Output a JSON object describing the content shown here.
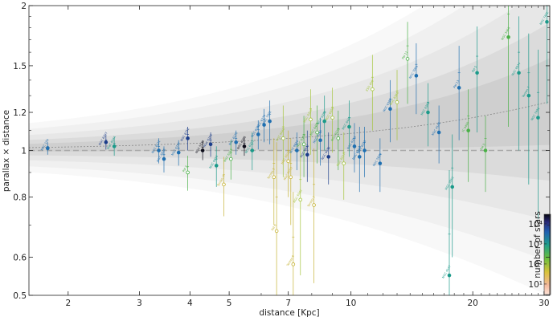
{
  "chart_data": {
    "type": "scatter",
    "xlabel": "distance [Kpc]",
    "ylabel": "parallax × distance",
    "x_scale": "log",
    "y_scale": "log",
    "xlim": [
      1.6,
      31
    ],
    "ylim": [
      0.5,
      2
    ],
    "xticks": [
      2,
      3,
      4,
      5,
      7,
      10,
      20,
      30
    ],
    "yticks": [
      0.5,
      0.6,
      0.8,
      1,
      1.2,
      1.5,
      2
    ],
    "reference_line": 1,
    "colorbar": {
      "label": "number of stars",
      "scale": "log",
      "range": [
        3,
        30000
      ],
      "ticks": [
        {
          "value": 10,
          "text": "10¹"
        },
        {
          "value": 100,
          "text": "10²"
        },
        {
          "value": 1000,
          "text": "10³"
        },
        {
          "value": 10000,
          "text": "10⁴"
        }
      ]
    },
    "colors": {
      "dark": "#0d0d1a",
      "navy": "#1b3c8a",
      "blue": "#1f6fb0",
      "teal": "#1b9a8a",
      "green": "#49b046",
      "yellowgreen": "#a3c43a",
      "olive": "#c4b232",
      "orange": "#e89a5a",
      "peach": "#f3c9b0",
      "reference": "#aaaaaa",
      "trend": "#888888"
    },
    "points": [
      {
        "x": 1.78,
        "y": 1.01,
        "e": 0.01,
        "c": "blue",
        "label": "NGC 104",
        "open": false
      },
      {
        "x": 2.48,
        "y": 1.04,
        "e": 0.012,
        "c": "navy",
        "label": "NGC 6397",
        "open": false
      },
      {
        "x": 2.6,
        "y": 1.02,
        "e": 0.015,
        "c": "teal",
        "label": "NGC 6544",
        "open": false
      },
      {
        "x": 3.35,
        "y": 1.0,
        "e": 0.02,
        "c": "blue",
        "label": "NGC 6121",
        "open": false
      },
      {
        "x": 3.45,
        "y": 0.96,
        "e": 0.02,
        "c": "blue",
        "label": "NGC 6838",
        "open": false
      },
      {
        "x": 3.75,
        "y": 0.99,
        "e": 0.02,
        "c": "blue",
        "label": "NGC 6752",
        "open": false
      },
      {
        "x": 3.95,
        "y": 0.9,
        "e": 0.025,
        "c": "green",
        "label": "Pal 2",
        "open": true
      },
      {
        "x": 3.95,
        "y": 1.06,
        "e": 0.02,
        "c": "navy",
        "label": "NGC 6752",
        "open": false
      },
      {
        "x": 4.3,
        "y": 1.0,
        "e": 0.015,
        "c": "dark",
        "label": "NGC 5139",
        "open": false
      },
      {
        "x": 4.5,
        "y": 1.03,
        "e": 0.02,
        "c": "navy",
        "label": "NGC 6254",
        "open": false
      },
      {
        "x": 4.65,
        "y": 0.93,
        "e": 0.03,
        "c": "teal",
        "label": "NGC 6656",
        "open": false
      },
      {
        "x": 4.85,
        "y": 0.85,
        "e": 0.04,
        "c": "olive",
        "label": "Terzan 9",
        "open": true
      },
      {
        "x": 5.05,
        "y": 0.96,
        "e": 0.03,
        "c": "green",
        "label": "NGC 6218",
        "open": true
      },
      {
        "x": 5.2,
        "y": 1.04,
        "e": 0.02,
        "c": "blue",
        "label": "NGC 6171",
        "open": false
      },
      {
        "x": 5.45,
        "y": 1.02,
        "e": 0.015,
        "c": "dark",
        "label": "NGC 6205",
        "open": false
      },
      {
        "x": 5.7,
        "y": 1.0,
        "e": 0.03,
        "c": "teal",
        "label": "NGC 6723",
        "open": false
      },
      {
        "x": 5.9,
        "y": 1.08,
        "e": 0.025,
        "c": "blue",
        "label": "NGC 6341",
        "open": false
      },
      {
        "x": 6.1,
        "y": 1.13,
        "e": 0.03,
        "c": "blue",
        "label": "NGC 6779",
        "open": false
      },
      {
        "x": 6.3,
        "y": 1.15,
        "e": 0.04,
        "c": "blue",
        "label": "NGC 7078",
        "open": false
      },
      {
        "x": 6.45,
        "y": 0.88,
        "e": 0.06,
        "c": "olive",
        "label": "Terzan 5",
        "open": true
      },
      {
        "x": 6.55,
        "y": 0.68,
        "e": 0.12,
        "c": "olive",
        "label": "Pal 6",
        "open": true
      },
      {
        "x": 6.8,
        "y": 1.06,
        "e": 0.06,
        "c": "yellowgreen",
        "label": "NGC 6440",
        "open": true
      },
      {
        "x": 7.0,
        "y": 0.95,
        "e": 0.05,
        "c": "olive",
        "label": "NGC 6528",
        "open": true
      },
      {
        "x": 7.1,
        "y": 0.88,
        "e": 0.06,
        "c": "olive",
        "label": "NGC 6553",
        "open": true
      },
      {
        "x": 7.2,
        "y": 0.58,
        "e": 0.08,
        "c": "olive",
        "label": "Terzan 6",
        "open": true
      },
      {
        "x": 7.35,
        "y": 1.0,
        "e": 0.03,
        "c": "blue",
        "label": "NGC 6624",
        "open": false
      },
      {
        "x": 7.5,
        "y": 0.79,
        "e": 0.08,
        "c": "yellowgreen",
        "label": "NGC 6342",
        "open": true
      },
      {
        "x": 7.65,
        "y": 1.03,
        "e": 0.05,
        "c": "green",
        "label": "NGC 6304",
        "open": true
      },
      {
        "x": 7.8,
        "y": 0.98,
        "e": 0.04,
        "c": "navy",
        "label": "NGC 6637",
        "open": false
      },
      {
        "x": 7.95,
        "y": 1.16,
        "e": 0.06,
        "c": "yellowgreen",
        "label": "NGC 6316",
        "open": true
      },
      {
        "x": 8.1,
        "y": 0.77,
        "e": 0.08,
        "c": "olive",
        "label": "Terzan 2",
        "open": true
      },
      {
        "x": 8.25,
        "y": 1.09,
        "e": 0.05,
        "c": "green",
        "label": "NGC 6401",
        "open": true
      },
      {
        "x": 8.4,
        "y": 1.05,
        "e": 0.04,
        "c": "blue",
        "label": "NGC 6266",
        "open": false
      },
      {
        "x": 8.6,
        "y": 1.15,
        "e": 0.05,
        "c": "teal",
        "label": "NGC 6388",
        "open": false
      },
      {
        "x": 8.8,
        "y": 0.97,
        "e": 0.04,
        "c": "navy",
        "label": "NGC 6652",
        "open": false
      },
      {
        "x": 9.0,
        "y": 1.17,
        "e": 0.06,
        "c": "yellowgreen",
        "label": "NGC 6355",
        "open": true
      },
      {
        "x": 9.3,
        "y": 1.06,
        "e": 0.05,
        "c": "green",
        "label": "NGC 6539",
        "open": true
      },
      {
        "x": 9.6,
        "y": 0.94,
        "e": 0.05,
        "c": "yellowgreen",
        "label": "NGC 6517",
        "open": true
      },
      {
        "x": 9.9,
        "y": 1.12,
        "e": 0.05,
        "c": "teal",
        "label": "NGC 6441",
        "open": false
      },
      {
        "x": 10.2,
        "y": 1.02,
        "e": 0.04,
        "c": "blue",
        "label": "NGC 6356",
        "open": false
      },
      {
        "x": 10.5,
        "y": 0.97,
        "e": 0.05,
        "c": "blue",
        "label": "NGC 6569",
        "open": false
      },
      {
        "x": 10.8,
        "y": 1.0,
        "e": 0.04,
        "c": "blue",
        "label": "NGC 6293",
        "open": false
      },
      {
        "x": 11.3,
        "y": 1.34,
        "e": 0.08,
        "c": "yellowgreen",
        "label": "ESO 456",
        "open": true
      },
      {
        "x": 11.8,
        "y": 0.94,
        "e": 0.04,
        "c": "blue",
        "label": "NGC 5824",
        "open": false
      },
      {
        "x": 12.5,
        "y": 1.22,
        "e": 0.06,
        "c": "blue",
        "label": "NGC 6380",
        "open": false
      },
      {
        "x": 13.0,
        "y": 1.26,
        "e": 0.07,
        "c": "yellowgreen",
        "label": "NGC 6366",
        "open": true
      },
      {
        "x": 13.8,
        "y": 1.55,
        "e": 0.1,
        "c": "green",
        "label": "Pal 11",
        "open": true
      },
      {
        "x": 14.5,
        "y": 1.43,
        "e": 0.08,
        "c": "blue",
        "label": "NGC 7006",
        "open": false
      },
      {
        "x": 15.5,
        "y": 1.2,
        "e": 0.06,
        "c": "teal",
        "label": "NGC 6366",
        "open": false
      },
      {
        "x": 16.5,
        "y": 1.09,
        "e": 0.05,
        "c": "blue",
        "label": "NGC 4147",
        "open": false
      },
      {
        "x": 17.5,
        "y": 0.55,
        "e": 0.12,
        "c": "teal",
        "label": "NGC 4147",
        "open": false
      },
      {
        "x": 17.8,
        "y": 0.84,
        "e": 0.08,
        "c": "teal",
        "label": "NGC 5053",
        "open": false
      },
      {
        "x": 18.5,
        "y": 1.35,
        "e": 0.1,
        "c": "blue",
        "label": "Pal 13",
        "open": false
      },
      {
        "x": 19.5,
        "y": 1.1,
        "e": 0.08,
        "c": "green",
        "label": "IC 4499",
        "open": false
      },
      {
        "x": 20.5,
        "y": 1.45,
        "e": 0.12,
        "c": "teal",
        "label": "Pal 5",
        "open": false
      },
      {
        "x": 21.5,
        "y": 1.0,
        "e": 0.06,
        "c": "green",
        "label": "Pal 3",
        "open": false
      },
      {
        "x": 24.5,
        "y": 1.72,
        "e": 0.2,
        "c": "green",
        "label": "NGC 5466",
        "open": false
      },
      {
        "x": 26.0,
        "y": 1.45,
        "e": 0.15,
        "c": "teal",
        "label": "NGC 6934",
        "open": false
      },
      {
        "x": 27.5,
        "y": 1.3,
        "e": 0.15,
        "c": "teal",
        "label": "Terzan 7",
        "open": false
      },
      {
        "x": 29.0,
        "y": 1.17,
        "e": 0.15,
        "c": "teal",
        "label": "NGC 7492",
        "open": false
      },
      {
        "x": 30.5,
        "y": 1.85,
        "e": 0.2,
        "c": "teal",
        "label": "NGC 7492",
        "open": false
      }
    ]
  }
}
